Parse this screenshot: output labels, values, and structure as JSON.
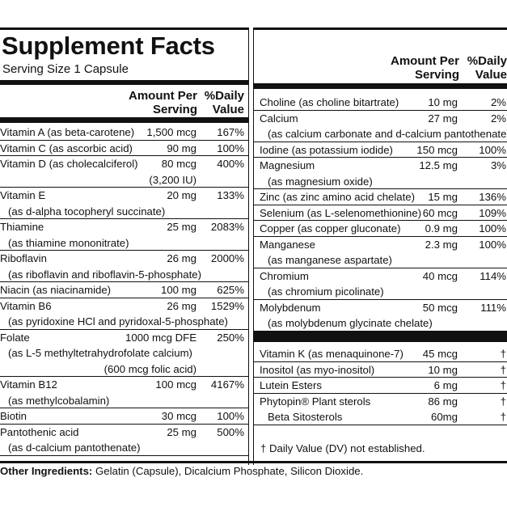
{
  "title": "Supplement Facts",
  "serving_size": "Serving Size 1 Capsule",
  "header": {
    "amount": "Amount Per\nServing",
    "dv": "%Daily\nValue"
  },
  "left_rows": [
    {
      "lines": [
        {
          "name": "Vitamin A (as beta-carotene)",
          "amount": "1,500 mcg",
          "dv": "167%"
        }
      ]
    },
    {
      "lines": [
        {
          "name": "Vitamin C (as ascorbic acid)",
          "amount": "90 mg",
          "dv": "100%"
        }
      ]
    },
    {
      "lines": [
        {
          "name": "Vitamin D (as cholecalciferol)",
          "amount": "80 mcg",
          "dv": "400%"
        },
        {
          "name": "",
          "amount": "(3,200 IU)",
          "dv": ""
        }
      ]
    },
    {
      "lines": [
        {
          "name": "Vitamin E",
          "amount": "20 mg",
          "dv": "133%"
        },
        {
          "name": "(as d-alpha tocopheryl succinate)",
          "amount": "",
          "dv": "",
          "indent": true
        }
      ]
    },
    {
      "lines": [
        {
          "name": "Thiamine",
          "amount": "25 mg",
          "dv": "2083%"
        },
        {
          "name": "(as thiamine mononitrate)",
          "amount": "",
          "dv": "",
          "indent": true
        }
      ]
    },
    {
      "lines": [
        {
          "name": "Riboflavin",
          "amount": "26 mg",
          "dv": "2000%"
        },
        {
          "name": "(as riboflavin and riboflavin-5-phosphate)",
          "amount": "",
          "dv": "",
          "indent": true
        }
      ]
    },
    {
      "lines": [
        {
          "name": "Niacin (as niacinamide)",
          "amount": "100 mg",
          "dv": "625%"
        }
      ]
    },
    {
      "lines": [
        {
          "name": "Vitamin B6",
          "amount": "26 mg",
          "dv": "1529%"
        },
        {
          "name": "(as pyridoxine HCl and pyridoxal-5-phosphate)",
          "amount": "",
          "dv": "",
          "indent": true
        }
      ]
    },
    {
      "lines": [
        {
          "name": "Folate",
          "amount": "1000 mcg DFE",
          "dv": "250%"
        },
        {
          "name": "(as L-5 methyltetrahydrofolate calcium)",
          "amount": "",
          "dv": "",
          "indent": true
        },
        {
          "name": "",
          "amount": "(600 mcg folic acid)",
          "dv": ""
        }
      ]
    },
    {
      "lines": [
        {
          "name": "Vitamin B12",
          "amount": "100 mcg",
          "dv": "4167%"
        },
        {
          "name": "(as methylcobalamin)",
          "amount": "",
          "dv": "",
          "indent": true
        }
      ]
    },
    {
      "lines": [
        {
          "name": "Biotin",
          "amount": "30 mcg",
          "dv": "100%"
        }
      ]
    },
    {
      "lines": [
        {
          "name": "Pantothenic acid",
          "amount": "25 mg",
          "dv": "500%"
        },
        {
          "name": "(as d-calcium pantothenate)",
          "amount": "",
          "dv": "",
          "indent": true
        }
      ]
    }
  ],
  "right_rows": [
    {
      "lines": [
        {
          "name": "Choline (as choline bitartrate)",
          "amount": "10 mg",
          "dv": "2%"
        }
      ]
    },
    {
      "lines": [
        {
          "name": "Calcium",
          "amount": "27 mg",
          "dv": "2%"
        },
        {
          "name": "(as calcium carbonate and d-calcium pantothenate)",
          "amount": "",
          "dv": "",
          "indent": true
        }
      ]
    },
    {
      "lines": [
        {
          "name": "Iodine (as potassium iodide)",
          "amount": "150 mcg",
          "dv": "100%"
        }
      ]
    },
    {
      "lines": [
        {
          "name": "Magnesium",
          "amount": "12.5 mg",
          "dv": "3%"
        },
        {
          "name": "(as magnesium oxide)",
          "amount": "",
          "dv": "",
          "indent": true
        }
      ]
    },
    {
      "lines": [
        {
          "name": "Zinc (as zinc amino acid chelate)",
          "amount": "15 mg",
          "dv": "136%"
        }
      ]
    },
    {
      "lines": [
        {
          "name": "Selenium (as L-selenomethionine)",
          "amount": "60 mcg",
          "dv": "109%"
        }
      ]
    },
    {
      "lines": [
        {
          "name": "Copper (as copper gluconate)",
          "amount": "0.9 mg",
          "dv": "100%"
        }
      ]
    },
    {
      "lines": [
        {
          "name": "Manganese",
          "amount": "2.3 mg",
          "dv": "100%"
        },
        {
          "name": "(as manganese aspartate)",
          "amount": "",
          "dv": "",
          "indent": true
        }
      ]
    },
    {
      "lines": [
        {
          "name": "Chromium",
          "amount": "40 mcg",
          "dv": "114%"
        },
        {
          "name": "(as chromium picolinate)",
          "amount": "",
          "dv": "",
          "indent": true
        }
      ]
    },
    {
      "lines": [
        {
          "name": "Molybdenum",
          "amount": "50 mcg",
          "dv": "111%"
        },
        {
          "name": "(as molybdenum glycinate chelate)",
          "amount": "",
          "dv": "",
          "indent": true
        }
      ]
    }
  ],
  "right_rows_2": [
    {
      "lines": [
        {
          "name": "Vitamin K (as menaquinone-7)",
          "amount": "45 mcg",
          "dv": "†"
        }
      ]
    },
    {
      "lines": [
        {
          "name": "Inositol (as myo-inositol)",
          "amount": "10 mg",
          "dv": "†"
        }
      ]
    },
    {
      "lines": [
        {
          "name": "Lutein Esters",
          "amount": "6 mg",
          "dv": "†"
        }
      ]
    },
    {
      "lines": [
        {
          "name": "Phytopin® Plant sterols",
          "amount": "86 mg",
          "dv": "†"
        },
        {
          "name": "Beta Sitosterols",
          "amount": "60mg",
          "dv": "†",
          "indent": true
        }
      ]
    }
  ],
  "footnote": "† Daily Value (DV) not established.",
  "other_label": "Other Ingredients:",
  "other_text": " Gelatin (Capsule), Dicalcium Phosphate, Silicon Dioxide."
}
